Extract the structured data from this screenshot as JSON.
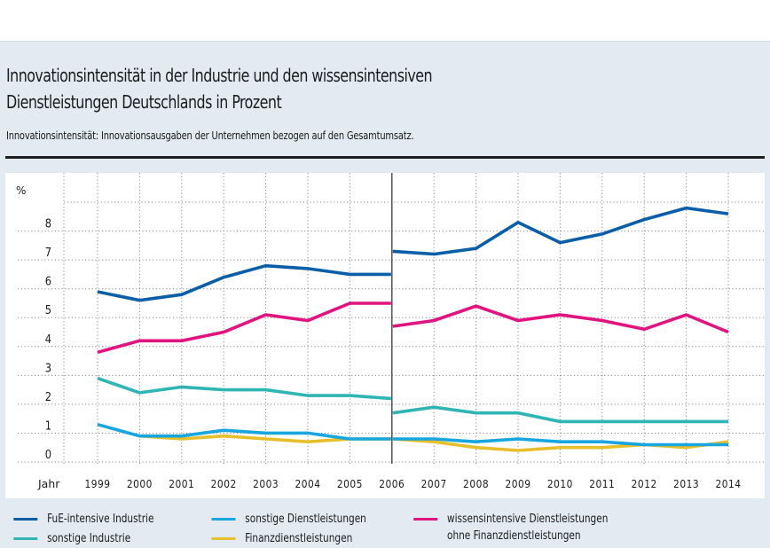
{
  "header": {
    "title_line1": "Innovationsintensität in der Industrie und den wissensintensiven",
    "title_line2": "Dienstleistungen Deutschlands in Prozent",
    "subtitle": "Innovationsintensität: Innovationsausgaben der Unternehmen bezogen auf den Gesamtumsatz."
  },
  "legend": {
    "items": [
      {
        "label": "FuE-intensive Industrie",
        "color": "#0a5ea8"
      },
      {
        "label": "sonstige Industrie",
        "color": "#2fb5b3"
      },
      {
        "label": "sonstige Dienstleistungen",
        "color": "#17a6df"
      },
      {
        "label": "Finanzdienstleistungen",
        "color": "#e6bf2a"
      },
      {
        "label": "wissensintensive Dienstleistungen",
        "label2": "ohne Finanzdienstleistungen",
        "color": "#e2127f"
      }
    ]
  },
  "chart_data": {
    "type": "line",
    "title": "Innovationsintensität in der Industrie und den wissensintensiven Dienstleistungen Deutschlands in Prozent",
    "xlabel": "Jahr",
    "ylabel": "%",
    "x": [
      1999,
      2000,
      2001,
      2002,
      2003,
      2004,
      2005,
      2006,
      2007,
      2008,
      2009,
      2010,
      2011,
      2012,
      2013,
      2014
    ],
    "yticks": [
      0,
      1,
      2,
      3,
      4,
      5,
      6,
      7,
      8
    ],
    "ylim": [
      0,
      9
    ],
    "grid": true,
    "break_at": 2006,
    "break_note": "vertical separator at 2006; series plotted as two segments (1999–2006 and 2006–2014)",
    "legend_position": "bottom",
    "series": [
      {
        "name": "FuE-intensive Industrie",
        "color": "#0a5ea8",
        "segment1": [
          5.9,
          5.6,
          5.8,
          6.4,
          6.8,
          6.7,
          6.5,
          6.5
        ],
        "segment2": [
          7.3,
          7.2,
          7.4,
          8.3,
          7.6,
          7.9,
          8.4,
          8.8,
          8.6
        ]
      },
      {
        "name": "wissensintensive Dienstleistungen ohne Finanzdienstleistungen",
        "color": "#e2127f",
        "segment1": [
          3.8,
          4.2,
          4.2,
          4.5,
          5.1,
          4.9,
          5.5,
          5.5
        ],
        "segment2": [
          4.7,
          4.9,
          5.4,
          4.9,
          5.1,
          4.9,
          4.6,
          5.1,
          4.5
        ]
      },
      {
        "name": "sonstige Industrie",
        "color": "#2fb5b3",
        "segment1": [
          2.9,
          2.4,
          2.6,
          2.5,
          2.5,
          2.3,
          2.3,
          2.2
        ],
        "segment2": [
          1.7,
          1.9,
          1.7,
          1.7,
          1.4,
          1.4,
          1.4,
          1.4,
          1.4
        ]
      },
      {
        "name": "Finanzdienstleistungen",
        "color": "#e6bf2a",
        "segment1": [
          null,
          0.9,
          0.8,
          0.9,
          0.8,
          0.7,
          0.8,
          0.8
        ],
        "segment2": [
          0.8,
          0.7,
          0.5,
          0.4,
          0.5,
          0.5,
          0.6,
          0.5,
          0.7
        ]
      },
      {
        "name": "sonstige Dienstleistungen",
        "color": "#17a6df",
        "segment1": [
          1.3,
          0.9,
          0.9,
          1.1,
          1.0,
          1.0,
          0.8,
          0.8
        ],
        "segment2": [
          0.8,
          0.8,
          0.7,
          0.8,
          0.7,
          0.7,
          0.6,
          0.6,
          0.6
        ]
      }
    ]
  }
}
